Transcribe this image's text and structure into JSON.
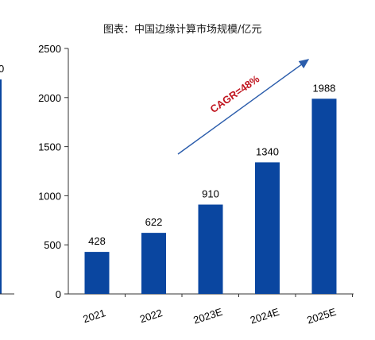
{
  "chart_data": {
    "type": "bar",
    "title": "图表：中国边缘计算市场规模/亿元",
    "categories": [
      "2021",
      "2022",
      "2023E",
      "2024E",
      "2025E"
    ],
    "values": [
      428,
      622,
      910,
      1340,
      1988
    ],
    "data_labels": [
      "428",
      "622",
      "910",
      "1340",
      "1988"
    ],
    "y_ticks": [
      "0",
      "500",
      "1000",
      "1500",
      "2000",
      "2500"
    ],
    "ylim": [
      0,
      2500
    ],
    "xlabel": "",
    "ylabel": "",
    "grid": false,
    "bar_color": "#0a46a0",
    "annotation": {
      "text": "CAGR=48%",
      "color": "#c0141e",
      "arrow_color": "#2a5cab"
    },
    "left_fragment": {
      "label": "0",
      "color": "#0a46a0"
    }
  }
}
